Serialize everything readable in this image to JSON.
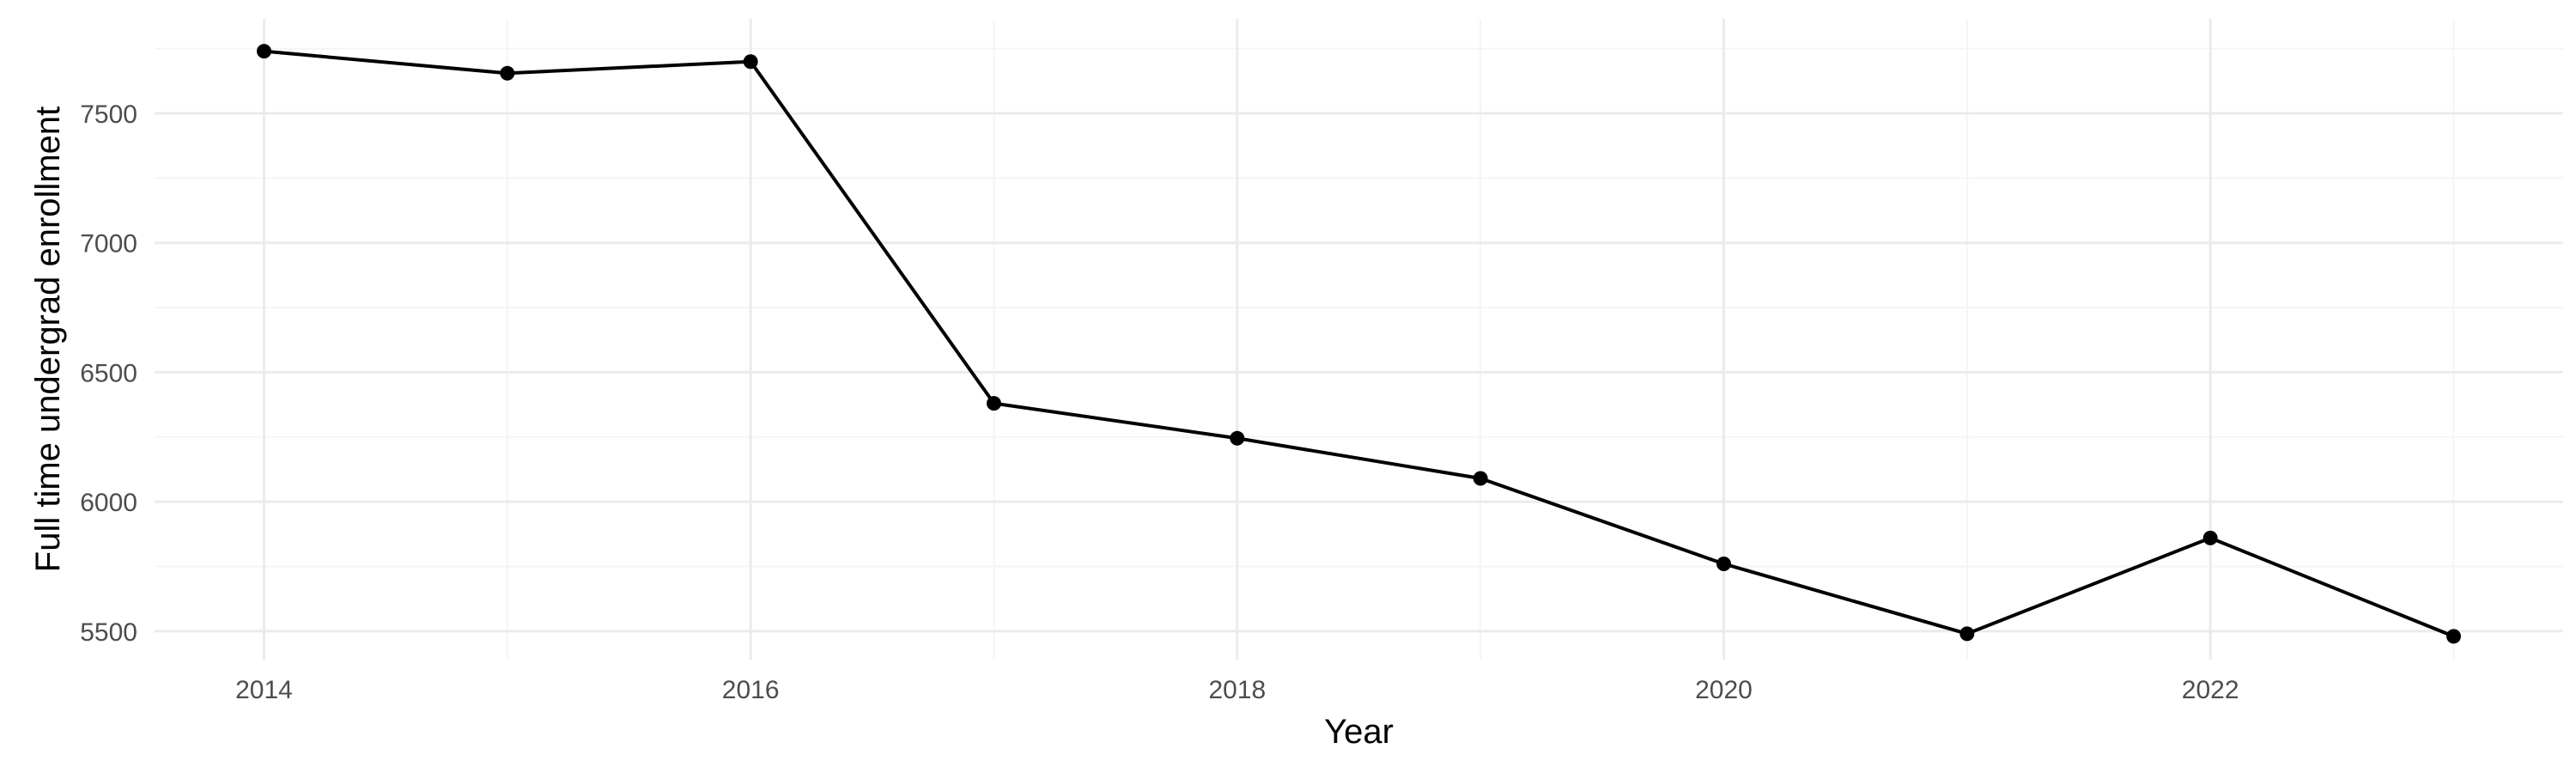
{
  "chart_data": {
    "type": "line",
    "title": "",
    "xlabel": "Year",
    "ylabel": "Full time undergrad enrollment",
    "x": [
      2014,
      2015,
      2016,
      2017,
      2018,
      2019,
      2020,
      2021,
      2022,
      2023
    ],
    "series": [
      {
        "values": [
          7740,
          7655,
          7700,
          6380,
          6245,
          6090,
          5760,
          5490,
          5860,
          5480
        ]
      }
    ],
    "xlim": [
      2013.55,
      2023.45
    ],
    "ylim": [
      5390,
      7865
    ],
    "x_ticks": [
      2014,
      2016,
      2018,
      2020,
      2022
    ],
    "x_tick_labels": [
      "2014",
      "2016",
      "2018",
      "2020",
      "2022"
    ],
    "x_minor_ticks": [
      2015,
      2017,
      2019,
      2021,
      2023
    ],
    "y_ticks": [
      5500,
      6000,
      6500,
      7000,
      7500
    ],
    "y_tick_labels": [
      "5500",
      "6000",
      "6500",
      "7000",
      "7500"
    ],
    "y_minor_ticks": [
      5750,
      6250,
      6750,
      7250,
      7750
    ],
    "grid": true,
    "legend": "none",
    "colors": {
      "line": "#000000",
      "point": "#000000",
      "grid_major": "#ebebeb",
      "grid_minor": "#f5f5f5",
      "tick_text": "#4d4d4d",
      "axis_title": "#000000"
    }
  }
}
